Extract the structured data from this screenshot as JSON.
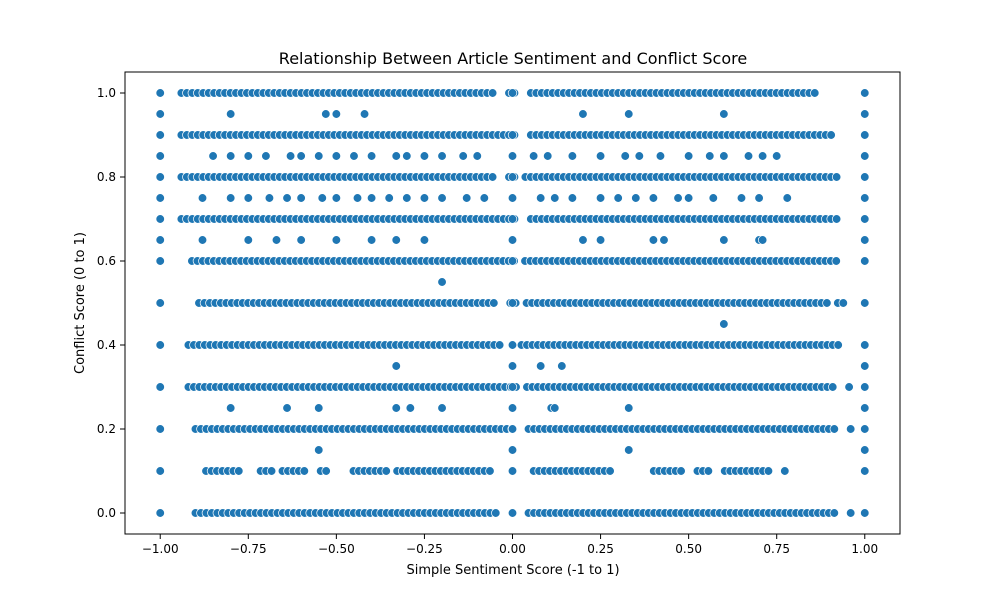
{
  "chart_data": {
    "type": "scatter",
    "title": "Relationship Between Article Sentiment and Conflict Score",
    "xlabel": "Simple Sentiment Score (-1 to 1)",
    "ylabel": "Conflict Score (0 to 1)",
    "xlim": [
      -1.1,
      1.1
    ],
    "ylim": [
      -0.05,
      1.05
    ],
    "xticks": [
      -1.0,
      -0.75,
      -0.5,
      -0.25,
      0.0,
      0.25,
      0.5,
      0.75,
      1.0
    ],
    "xtick_labels": [
      "−1.00",
      "−0.75",
      "−0.50",
      "−0.25",
      "0.00",
      "0.25",
      "0.50",
      "0.75",
      "1.00"
    ],
    "yticks": [
      0.0,
      0.2,
      0.4,
      0.6,
      0.8,
      1.0
    ],
    "ytick_labels": [
      "0.0",
      "0.2",
      "0.4",
      "0.6",
      "0.8",
      "1.0"
    ],
    "grid": false,
    "color": "#1f77b4",
    "series": [
      {
        "points": [
          {
            "x": -1.0,
            "y": 1.0
          },
          {
            "x": -1.0,
            "y": 0.95
          },
          {
            "x": -1.0,
            "y": 0.9
          },
          {
            "x": -1.0,
            "y": 0.85
          },
          {
            "x": -1.0,
            "y": 0.8
          },
          {
            "x": -1.0,
            "y": 0.75
          },
          {
            "x": -1.0,
            "y": 0.7
          },
          {
            "x": -1.0,
            "y": 0.65
          },
          {
            "x": -1.0,
            "y": 0.6
          },
          {
            "x": -1.0,
            "y": 0.5
          },
          {
            "x": -1.0,
            "y": 0.4
          },
          {
            "x": -1.0,
            "y": 0.3
          },
          {
            "x": -1.0,
            "y": 0.2
          },
          {
            "x": -1.0,
            "y": 0.1
          },
          {
            "x": -1.0,
            "y": 0.0
          },
          {
            "x": 1.0,
            "y": 1.0
          },
          {
            "x": 1.0,
            "y": 0.95
          },
          {
            "x": 1.0,
            "y": 0.9
          },
          {
            "x": 1.0,
            "y": 0.85
          },
          {
            "x": 1.0,
            "y": 0.8
          },
          {
            "x": 1.0,
            "y": 0.75
          },
          {
            "x": 1.0,
            "y": 0.7
          },
          {
            "x": 1.0,
            "y": 0.65
          },
          {
            "x": 1.0,
            "y": 0.6
          },
          {
            "x": 1.0,
            "y": 0.5
          },
          {
            "x": 1.0,
            "y": 0.4
          },
          {
            "x": 1.0,
            "y": 0.35
          },
          {
            "x": 1.0,
            "y": 0.3
          },
          {
            "x": 1.0,
            "y": 0.25
          },
          {
            "x": 1.0,
            "y": 0.2
          },
          {
            "x": 1.0,
            "y": 0.15
          },
          {
            "x": 1.0,
            "y": 0.1
          },
          {
            "x": 1.0,
            "y": 0.0
          },
          {
            "x": 0.0,
            "y": 1.0
          },
          {
            "x": 0.0,
            "y": 0.9
          },
          {
            "x": 0.0,
            "y": 0.85
          },
          {
            "x": 0.0,
            "y": 0.8
          },
          {
            "x": 0.0,
            "y": 0.75
          },
          {
            "x": 0.0,
            "y": 0.7
          },
          {
            "x": 0.0,
            "y": 0.65
          },
          {
            "x": 0.0,
            "y": 0.6
          },
          {
            "x": 0.0,
            "y": 0.5
          },
          {
            "x": 0.0,
            "y": 0.4
          },
          {
            "x": 0.0,
            "y": 0.35
          },
          {
            "x": 0.0,
            "y": 0.3
          },
          {
            "x": 0.0,
            "y": 0.25
          },
          {
            "x": 0.0,
            "y": 0.2
          },
          {
            "x": 0.0,
            "y": 0.15
          },
          {
            "x": 0.0,
            "y": 0.1
          },
          {
            "x": 0.0,
            "y": 0.0
          },
          {
            "x": -0.8,
            "y": 0.95
          },
          {
            "x": -0.53,
            "y": 0.95
          },
          {
            "x": -0.5,
            "y": 0.95
          },
          {
            "x": -0.42,
            "y": 0.95
          },
          {
            "x": 0.2,
            "y": 0.95
          },
          {
            "x": 0.33,
            "y": 0.95
          },
          {
            "x": 0.6,
            "y": 0.95
          },
          {
            "x": -0.85,
            "y": 0.85
          },
          {
            "x": -0.8,
            "y": 0.85
          },
          {
            "x": -0.75,
            "y": 0.85
          },
          {
            "x": -0.7,
            "y": 0.85
          },
          {
            "x": -0.63,
            "y": 0.85
          },
          {
            "x": -0.6,
            "y": 0.85
          },
          {
            "x": -0.55,
            "y": 0.85
          },
          {
            "x": -0.5,
            "y": 0.85
          },
          {
            "x": -0.45,
            "y": 0.85
          },
          {
            "x": -0.4,
            "y": 0.85
          },
          {
            "x": -0.33,
            "y": 0.85
          },
          {
            "x": -0.3,
            "y": 0.85
          },
          {
            "x": -0.25,
            "y": 0.85
          },
          {
            "x": -0.2,
            "y": 0.85
          },
          {
            "x": -0.14,
            "y": 0.85
          },
          {
            "x": -0.1,
            "y": 0.85
          },
          {
            "x": 0.06,
            "y": 0.85
          },
          {
            "x": 0.1,
            "y": 0.85
          },
          {
            "x": 0.17,
            "y": 0.85
          },
          {
            "x": 0.25,
            "y": 0.85
          },
          {
            "x": 0.32,
            "y": 0.85
          },
          {
            "x": 0.36,
            "y": 0.85
          },
          {
            "x": 0.42,
            "y": 0.85
          },
          {
            "x": 0.5,
            "y": 0.85
          },
          {
            "x": 0.56,
            "y": 0.85
          },
          {
            "x": 0.6,
            "y": 0.85
          },
          {
            "x": 0.67,
            "y": 0.85
          },
          {
            "x": 0.71,
            "y": 0.85
          },
          {
            "x": 0.75,
            "y": 0.85
          },
          {
            "x": -0.88,
            "y": 0.75
          },
          {
            "x": -0.8,
            "y": 0.75
          },
          {
            "x": -0.75,
            "y": 0.75
          },
          {
            "x": -0.69,
            "y": 0.75
          },
          {
            "x": -0.64,
            "y": 0.75
          },
          {
            "x": -0.6,
            "y": 0.75
          },
          {
            "x": -0.54,
            "y": 0.75
          },
          {
            "x": -0.5,
            "y": 0.75
          },
          {
            "x": -0.44,
            "y": 0.75
          },
          {
            "x": -0.4,
            "y": 0.75
          },
          {
            "x": -0.35,
            "y": 0.75
          },
          {
            "x": -0.3,
            "y": 0.75
          },
          {
            "x": -0.25,
            "y": 0.75
          },
          {
            "x": -0.2,
            "y": 0.75
          },
          {
            "x": -0.13,
            "y": 0.75
          },
          {
            "x": -0.08,
            "y": 0.75
          },
          {
            "x": 0.08,
            "y": 0.75
          },
          {
            "x": 0.12,
            "y": 0.75
          },
          {
            "x": 0.17,
            "y": 0.75
          },
          {
            "x": 0.25,
            "y": 0.75
          },
          {
            "x": 0.3,
            "y": 0.75
          },
          {
            "x": 0.35,
            "y": 0.75
          },
          {
            "x": 0.4,
            "y": 0.75
          },
          {
            "x": 0.47,
            "y": 0.75
          },
          {
            "x": 0.5,
            "y": 0.75
          },
          {
            "x": 0.57,
            "y": 0.75
          },
          {
            "x": 0.65,
            "y": 0.75
          },
          {
            "x": 0.7,
            "y": 0.75
          },
          {
            "x": 0.78,
            "y": 0.75
          },
          {
            "x": -0.88,
            "y": 0.65
          },
          {
            "x": -0.75,
            "y": 0.65
          },
          {
            "x": -0.67,
            "y": 0.65
          },
          {
            "x": -0.6,
            "y": 0.65
          },
          {
            "x": -0.5,
            "y": 0.65
          },
          {
            "x": -0.4,
            "y": 0.65
          },
          {
            "x": -0.33,
            "y": 0.65
          },
          {
            "x": -0.25,
            "y": 0.65
          },
          {
            "x": 0.2,
            "y": 0.65
          },
          {
            "x": 0.25,
            "y": 0.65
          },
          {
            "x": 0.4,
            "y": 0.65
          },
          {
            "x": 0.43,
            "y": 0.65
          },
          {
            "x": 0.6,
            "y": 0.65
          },
          {
            "x": 0.7,
            "y": 0.65
          },
          {
            "x": 0.71,
            "y": 0.65
          },
          {
            "x": -0.2,
            "y": 0.55
          },
          {
            "x": 0.6,
            "y": 0.45
          },
          {
            "x": -0.33,
            "y": 0.35
          },
          {
            "x": 0.0,
            "y": 0.35
          },
          {
            "x": 0.08,
            "y": 0.35
          },
          {
            "x": 0.14,
            "y": 0.35
          },
          {
            "x": -0.8,
            "y": 0.25
          },
          {
            "x": -0.64,
            "y": 0.25
          },
          {
            "x": -0.55,
            "y": 0.25
          },
          {
            "x": -0.33,
            "y": 0.25
          },
          {
            "x": -0.29,
            "y": 0.25
          },
          {
            "x": -0.2,
            "y": 0.25
          },
          {
            "x": 0.11,
            "y": 0.25
          },
          {
            "x": 0.12,
            "y": 0.25
          },
          {
            "x": 0.33,
            "y": 0.25
          },
          {
            "x": -0.55,
            "y": 0.15
          },
          {
            "x": 0.33,
            "y": 0.15
          }
        ],
        "rows": [
          {
            "y": 1.0,
            "x_min": -0.94,
            "x_max": 0.87,
            "step": 0.0155,
            "gaps": [
              [
                -0.055,
                -0.02
              ],
              [
                0.015,
                0.045
              ]
            ]
          },
          {
            "y": 0.9,
            "x_min": -0.94,
            "x_max": 0.91,
            "step": 0.0155,
            "gaps": [
              [
                0.015,
                0.04
              ]
            ]
          },
          {
            "y": 0.8,
            "x_min": -0.94,
            "x_max": 0.92,
            "step": 0.0155,
            "gaps": [
              [
                -0.045,
                -0.02
              ],
              [
                0.01,
                0.025
              ]
            ]
          },
          {
            "y": 0.7,
            "x_min": -0.94,
            "x_max": 0.92,
            "step": 0.0155,
            "gaps": [
              [
                0.01,
                0.04
              ]
            ]
          },
          {
            "y": 0.6,
            "x_min": -0.91,
            "x_max": 0.92,
            "step": 0.0155,
            "gaps": [
              [
                0.01,
                0.035
              ]
            ]
          },
          {
            "y": 0.5,
            "x_min": -0.89,
            "x_max": 0.94,
            "step": 0.0155,
            "gaps": [
              [
                -0.04,
                -0.01
              ],
              [
                0.01,
                0.03
              ],
              [
                0.9,
                0.92
              ]
            ]
          },
          {
            "y": 0.4,
            "x_min": -0.92,
            "x_max": 0.93,
            "step": 0.0155,
            "gaps": [
              [
                -0.03,
                0.025
              ]
            ]
          },
          {
            "y": 0.3,
            "x_min": -0.92,
            "x_max": 0.96,
            "step": 0.0155,
            "gaps": [
              [
                0.01,
                0.035
              ],
              [
                0.92,
                0.95
              ]
            ]
          },
          {
            "y": 0.2,
            "x_min": -0.9,
            "x_max": 0.96,
            "step": 0.0155,
            "gaps": [
              [
                0.01,
                0.03
              ],
              [
                0.92,
                0.95
              ]
            ]
          },
          {
            "y": 0.1,
            "x_min": -0.87,
            "x_max": 0.78,
            "step": 0.0155,
            "gaps": [
              [
                -0.77,
                -0.72
              ],
              [
                -0.68,
                -0.66
              ],
              [
                -0.59,
                -0.56
              ],
              [
                -0.52,
                -0.46
              ],
              [
                -0.35,
                -0.33
              ],
              [
                -0.06,
                0.05
              ],
              [
                0.28,
                0.4
              ],
              [
                0.49,
                0.52
              ],
              [
                0.56,
                0.59
              ],
              [
                0.73,
                0.76
              ]
            ]
          },
          {
            "y": 0.0,
            "x_min": -0.9,
            "x_max": 0.96,
            "step": 0.0155,
            "gaps": [
              [
                -0.04,
                0.04
              ],
              [
                0.92,
                0.95
              ]
            ]
          }
        ]
      }
    ]
  }
}
